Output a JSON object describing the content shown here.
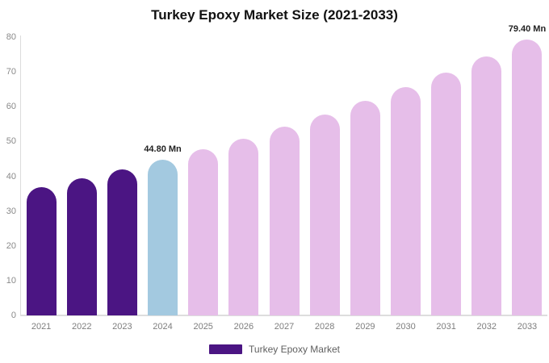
{
  "title": "Turkey Epoxy Market Size (2021-2033)",
  "legend": {
    "items": [
      {
        "label": "Turkey Epoxy Market",
        "color": "#4B1583"
      }
    ]
  },
  "chart_data": {
    "type": "bar",
    "title": "Turkey Epoxy Market Size (2021-2033)",
    "categories": [
      "2021",
      "2022",
      "2023",
      "2024",
      "2025",
      "2026",
      "2027",
      "2028",
      "2029",
      "2030",
      "2031",
      "2032",
      "2033"
    ],
    "values": [
      36.9,
      39.4,
      42.0,
      44.8,
      47.7,
      50.9,
      54.2,
      57.8,
      61.6,
      65.6,
      69.9,
      74.5,
      79.4
    ],
    "unit": "Mn",
    "annotations": [
      {
        "category": "2024",
        "text": "44.80 Mn"
      },
      {
        "category": "2033",
        "text": "79.40 Mn"
      }
    ],
    "colors": {
      "historical": "#4B1583",
      "base_year": "#A3C9E0",
      "forecast": "#E6BEE9"
    },
    "bar_colors": [
      "#4B1583",
      "#4B1583",
      "#4B1583",
      "#A3C9E0",
      "#E6BEE9",
      "#E6BEE9",
      "#E6BEE9",
      "#E6BEE9",
      "#E6BEE9",
      "#E6BEE9",
      "#E6BEE9",
      "#E6BEE9",
      "#E6BEE9"
    ],
    "ylim": [
      0,
      80
    ],
    "yticks": [
      0,
      10,
      20,
      30,
      40,
      50,
      60,
      70,
      80
    ],
    "xlabel": "",
    "ylabel": "",
    "grid": false,
    "legend_position": "bottom",
    "axis_color": "#DDDDDD",
    "tick_label_color": "#7D7D7D"
  }
}
